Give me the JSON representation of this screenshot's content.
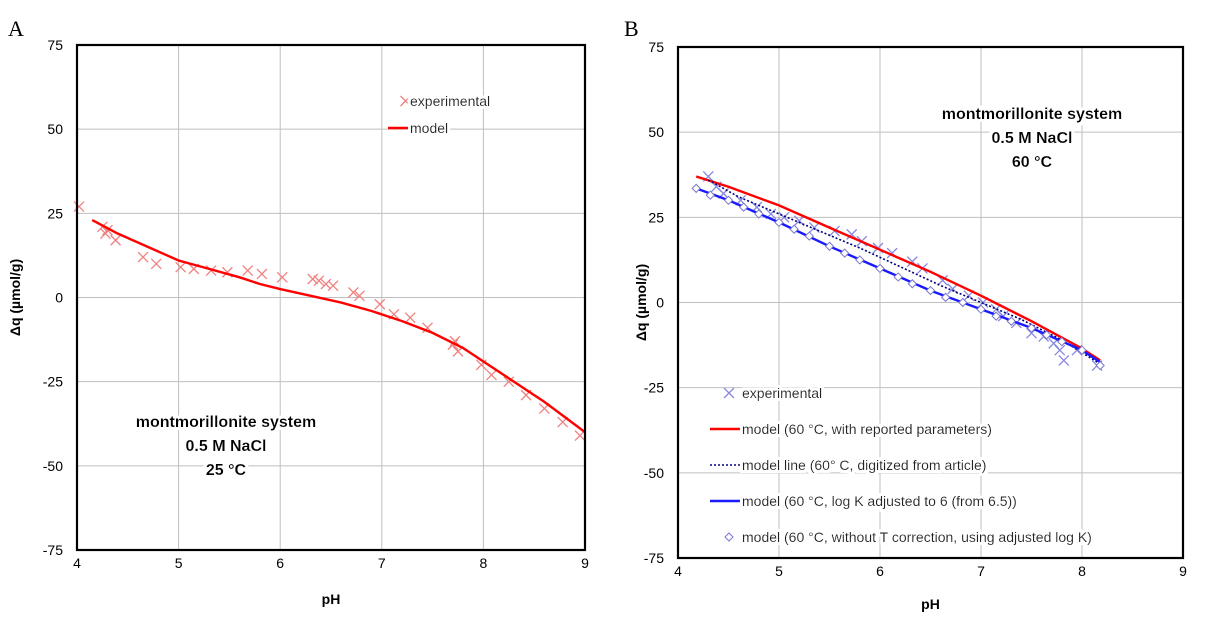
{
  "chart_data": [
    {
      "panel": "A",
      "type": "scatter",
      "xlabel": "pH",
      "ylabel": "Δq (µmol/g)",
      "xlim": [
        4,
        9
      ],
      "ylim": [
        -75,
        75
      ],
      "xticks": [
        4,
        5,
        6,
        7,
        8,
        9
      ],
      "yticks": [
        -75,
        -50,
        -25,
        0,
        25,
        50,
        75
      ],
      "grid": true,
      "legend_position": "top-right",
      "annotation": [
        "montmorillonite system",
        "0.5 M NaCl",
        "25 °C"
      ],
      "series": [
        {
          "name": "experimental",
          "kind": "marker",
          "marker": "x",
          "color": "#f08080",
          "points": [
            [
              4.02,
              27
            ],
            [
              4.25,
              21
            ],
            [
              4.28,
              19
            ],
            [
              4.3,
              20
            ],
            [
              4.38,
              17
            ],
            [
              4.65,
              12
            ],
            [
              4.78,
              10
            ],
            [
              5.02,
              9
            ],
            [
              5.15,
              8.5
            ],
            [
              5.32,
              8
            ],
            [
              5.48,
              7.5
            ],
            [
              5.68,
              8
            ],
            [
              5.82,
              7
            ],
            [
              6.02,
              6
            ],
            [
              6.32,
              5.5
            ],
            [
              6.38,
              5
            ],
            [
              6.45,
              4
            ],
            [
              6.52,
              3.5
            ],
            [
              6.72,
              1.5
            ],
            [
              6.78,
              0.5
            ],
            [
              6.98,
              -2
            ],
            [
              7.12,
              -5
            ],
            [
              7.28,
              -6
            ],
            [
              7.45,
              -9
            ],
            [
              7.7,
              -14
            ],
            [
              7.72,
              -13
            ],
            [
              7.75,
              -16
            ],
            [
              7.98,
              -20
            ],
            [
              8.08,
              -23
            ],
            [
              8.25,
              -25
            ],
            [
              8.42,
              -29
            ],
            [
              8.6,
              -33
            ],
            [
              8.78,
              -37
            ],
            [
              8.95,
              -41
            ]
          ]
        },
        {
          "name": "model",
          "kind": "line",
          "color": "#ff0000",
          "points": [
            [
              4.15,
              23
            ],
            [
              4.4,
              19
            ],
            [
              4.7,
              15
            ],
            [
              5.0,
              11
            ],
            [
              5.3,
              8.5
            ],
            [
              5.6,
              6
            ],
            [
              5.8,
              4
            ],
            [
              6.0,
              2.5
            ],
            [
              6.3,
              0.5
            ],
            [
              6.6,
              -1.5
            ],
            [
              6.9,
              -4
            ],
            [
              7.2,
              -7
            ],
            [
              7.5,
              -10.5
            ],
            [
              7.8,
              -15
            ],
            [
              8.0,
              -19
            ],
            [
              8.2,
              -23
            ],
            [
              8.4,
              -27
            ],
            [
              8.6,
              -31
            ],
            [
              8.8,
              -35.5
            ],
            [
              9.0,
              -40
            ]
          ]
        }
      ]
    },
    {
      "panel": "B",
      "type": "scatter",
      "xlabel": "pH",
      "ylabel": "Δq (µmol/g)",
      "xlim": [
        4,
        9
      ],
      "ylim": [
        -75,
        75
      ],
      "xticks": [
        4,
        5,
        6,
        7,
        8,
        9
      ],
      "yticks": [
        -75,
        -50,
        -25,
        0,
        25,
        50,
        75
      ],
      "grid": true,
      "legend_position": "bottom-left",
      "annotation": [
        "montmorillonite system",
        "0.5 M NaCl",
        "60 °C"
      ],
      "series": [
        {
          "name": "experimental",
          "kind": "marker",
          "marker": "x",
          "color": "#8888e0",
          "points": [
            [
              4.3,
              37
            ],
            [
              4.38,
              34
            ],
            [
              4.45,
              32
            ],
            [
              4.62,
              30
            ],
            [
              4.78,
              28
            ],
            [
              4.92,
              26
            ],
            [
              5.05,
              25
            ],
            [
              5.2,
              24
            ],
            [
              5.35,
              22
            ],
            [
              5.55,
              21
            ],
            [
              5.72,
              20
            ],
            [
              5.82,
              18
            ],
            [
              5.98,
              16
            ],
            [
              6.12,
              14.5
            ],
            [
              6.32,
              12
            ],
            [
              6.42,
              10
            ],
            [
              6.62,
              6.5
            ],
            [
              6.72,
              4
            ],
            [
              6.88,
              2
            ],
            [
              7.02,
              0
            ],
            [
              7.15,
              -2
            ],
            [
              7.22,
              -4
            ],
            [
              7.35,
              -6
            ],
            [
              7.5,
              -9
            ],
            [
              7.62,
              -10
            ],
            [
              7.72,
              -12
            ],
            [
              7.78,
              -14
            ],
            [
              7.82,
              -17
            ],
            [
              7.95,
              -14
            ],
            [
              8.15,
              -18.5
            ]
          ]
        },
        {
          "name": "model (60 °C, with reported parameters)",
          "kind": "line",
          "color": "#ff0000",
          "points": [
            [
              4.18,
              37
            ],
            [
              4.5,
              34
            ],
            [
              5.0,
              28.5
            ],
            [
              5.5,
              22
            ],
            [
              6.0,
              15.5
            ],
            [
              6.5,
              9
            ],
            [
              7.0,
              2
            ],
            [
              7.5,
              -5.5
            ],
            [
              8.0,
              -13.5
            ],
            [
              8.18,
              -17
            ]
          ]
        },
        {
          "name": "model line (60° C, digitized from article)",
          "kind": "dotted-line",
          "color": "#000080",
          "points": [
            [
              4.3,
              36
            ],
            [
              4.6,
              31
            ],
            [
              5.0,
              26
            ],
            [
              5.4,
              21
            ],
            [
              5.8,
              16
            ],
            [
              6.2,
              10.5
            ],
            [
              6.6,
              5
            ],
            [
              7.0,
              0
            ],
            [
              7.4,
              -5
            ],
            [
              7.8,
              -11
            ],
            [
              8.15,
              -17.5
            ]
          ]
        },
        {
          "name": "model (60 °C, log K adjusted to 6 (from 6.5))",
          "kind": "line",
          "color": "#1a1aff",
          "points": [
            [
              4.18,
              33.5
            ],
            [
              4.5,
              30
            ],
            [
              5.0,
              23.5
            ],
            [
              5.5,
              16.5
            ],
            [
              6.0,
              10
            ],
            [
              6.5,
              3.5
            ],
            [
              7.0,
              -2
            ],
            [
              7.5,
              -7.5
            ],
            [
              8.0,
              -14
            ],
            [
              8.18,
              -17.5
            ]
          ]
        },
        {
          "name": "model (60 °C, without T correction, using adjusted log K)",
          "kind": "marker",
          "marker": "diamond",
          "color": "#7777cc",
          "points": [
            [
              4.18,
              33.5
            ],
            [
              4.32,
              31.5
            ],
            [
              4.5,
              30
            ],
            [
              4.65,
              28
            ],
            [
              4.8,
              26
            ],
            [
              5.0,
              23.5
            ],
            [
              5.15,
              21.5
            ],
            [
              5.3,
              19.5
            ],
            [
              5.5,
              16.5
            ],
            [
              5.65,
              14.5
            ],
            [
              5.8,
              12.5
            ],
            [
              6.0,
              10
            ],
            [
              6.18,
              7.5
            ],
            [
              6.32,
              5.5
            ],
            [
              6.5,
              3.5
            ],
            [
              6.65,
              1.5
            ],
            [
              6.82,
              0
            ],
            [
              7.0,
              -2
            ],
            [
              7.15,
              -4
            ],
            [
              7.3,
              -5.5
            ],
            [
              7.5,
              -7.5
            ],
            [
              7.65,
              -9.5
            ],
            [
              7.8,
              -11.5
            ],
            [
              8.0,
              -14
            ],
            [
              8.18,
              -18.5
            ]
          ]
        }
      ]
    }
  ]
}
